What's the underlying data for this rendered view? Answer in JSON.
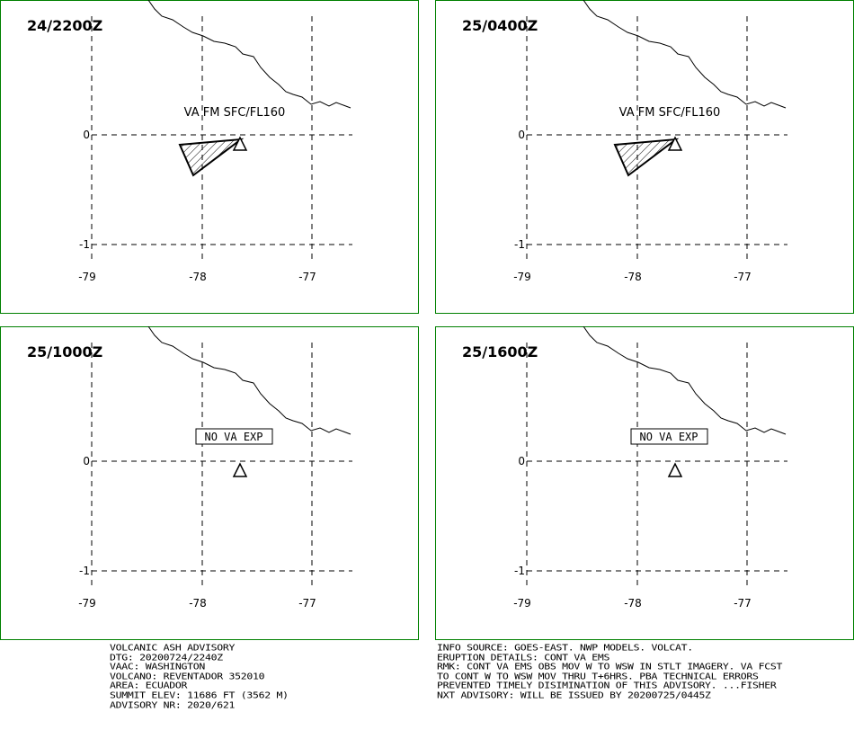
{
  "panels": [
    {
      "time": "24/2200Z",
      "annotation": "VA FM SFC/FL160"
    },
    {
      "time": "25/0400Z",
      "annotation": "VA FM SFC/FL160"
    },
    {
      "time": "25/1000Z",
      "annotation": "NO VA EXP"
    },
    {
      "time": "25/1600Z",
      "annotation": "NO VA EXP"
    }
  ],
  "lon_labels": [
    "-79",
    "-78",
    "-77"
  ],
  "lat_labels": [
    "0",
    "-1"
  ],
  "advisory": [
    "VOLCANIC ASH ADVISORY",
    "DTG: 20200724/2240Z",
    "VAAC: WASHINGTON",
    "VOLCANO: REVENTADOR 352010",
    "AREA: ECUADOR",
    "SUMMIT ELEV: 11686 FT (3562 M)",
    "ADVISORY NR: 2020/621"
  ],
  "info": [
    "INFO SOURCE: GOES-EAST. NWP MODELS. VOLCAT.",
    "ERUPTION DETAILS: CONT VA EMS",
    "RMK: CONT VA EMS OBS MOV W TO WSW IN STLT IMAGERY. VA FCST",
    "TO CONT W TO WSW MOV THRU T+6HRS. PBA TECHNICAL ERRORS",
    "PREVENTED TIMELY DISIMINATION OF THIS ADVISORY. ...FISHER",
    "NXT ADVISORY: WILL BE ISSUED BY 20200725/0445Z"
  ]
}
